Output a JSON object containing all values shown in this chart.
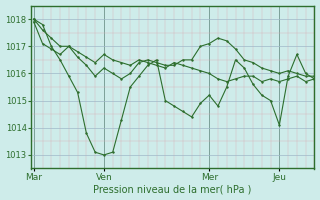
{
  "background_color": "#ceecea",
  "line_color": "#2d6e2d",
  "marker_color": "#2d6e2d",
  "xlabel_text": "Pression niveau de la mer( hPa )",
  "ylim": [
    1012.5,
    1018.5
  ],
  "yticks": [
    1013,
    1014,
    1015,
    1016,
    1017,
    1018
  ],
  "day_labels": [
    "Mar",
    "Ven",
    "Mer",
    "Jeu"
  ],
  "day_positions": [
    0,
    48,
    120,
    168
  ],
  "total_hours": 192,
  "series1_x": [
    0,
    6,
    12,
    18,
    24,
    30,
    36,
    42,
    48,
    54,
    60,
    66,
    72,
    78,
    84,
    90,
    96,
    102,
    108,
    114,
    120,
    126,
    132,
    138,
    144,
    150,
    156,
    162,
    168,
    174,
    180,
    186,
    192
  ],
  "series1_y": [
    1018.0,
    1017.6,
    1017.3,
    1017.0,
    1017.0,
    1016.8,
    1016.6,
    1016.4,
    1016.7,
    1016.5,
    1016.4,
    1016.3,
    1016.5,
    1016.4,
    1016.3,
    1016.2,
    1016.4,
    1016.3,
    1016.2,
    1016.1,
    1016.0,
    1015.8,
    1015.7,
    1015.8,
    1015.9,
    1015.9,
    1015.7,
    1015.8,
    1015.7,
    1015.8,
    1015.9,
    1015.7,
    1015.8
  ],
  "series2_x": [
    0,
    6,
    12,
    18,
    24,
    30,
    36,
    42,
    48,
    54,
    60,
    66,
    72,
    78,
    84,
    90,
    96,
    102,
    108,
    114,
    120,
    126,
    132,
    138,
    144,
    150,
    156,
    162,
    168,
    174,
    180,
    186,
    192
  ],
  "series2_y": [
    1017.9,
    1017.1,
    1016.9,
    1016.7,
    1017.0,
    1016.6,
    1016.3,
    1015.9,
    1016.2,
    1016.0,
    1015.8,
    1016.0,
    1016.4,
    1016.5,
    1016.4,
    1016.3,
    1016.3,
    1016.5,
    1016.5,
    1017.0,
    1017.1,
    1017.3,
    1017.2,
    1016.9,
    1016.5,
    1016.4,
    1016.2,
    1016.1,
    1016.0,
    1016.1,
    1016.0,
    1015.9,
    1015.9
  ],
  "series3_x": [
    0,
    6,
    12,
    18,
    24,
    30,
    36,
    42,
    48,
    54,
    60,
    66,
    72,
    78,
    84,
    90,
    96,
    102,
    108,
    114,
    120,
    126,
    132,
    138,
    144,
    150,
    156,
    162,
    168,
    174,
    180,
    186,
    192
  ],
  "series3_y": [
    1018.0,
    1017.8,
    1017.0,
    1016.5,
    1015.9,
    1015.3,
    1013.8,
    1013.1,
    1013.0,
    1013.1,
    1014.3,
    1015.5,
    1015.9,
    1016.3,
    1016.5,
    1015.0,
    1014.8,
    1014.6,
    1014.4,
    1014.9,
    1015.2,
    1014.8,
    1015.5,
    1016.5,
    1016.2,
    1015.6,
    1015.2,
    1015.0,
    1014.1,
    1015.9,
    1016.7,
    1016.0,
    1015.8
  ]
}
